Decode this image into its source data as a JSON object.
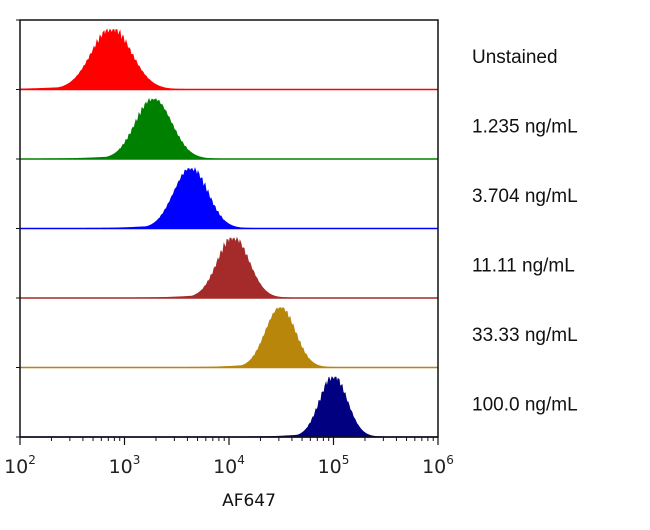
{
  "chart_data": {
    "type": "area",
    "subtype": "stacked-histogram-overlay",
    "xlabel": "AF647",
    "xscale": "log",
    "xlim": [
      100,
      1000000
    ],
    "x_ticks": [
      {
        "value": 100,
        "base": "10",
        "exp": "2"
      },
      {
        "value": 1000,
        "base": "10",
        "exp": "3"
      },
      {
        "value": 10000,
        "base": "10",
        "exp": "4"
      },
      {
        "value": 100000,
        "base": "10",
        "exp": "5"
      },
      {
        "value": 1000000,
        "base": "10",
        "exp": "6"
      }
    ],
    "series": [
      {
        "name": "Unstained",
        "color": "#ff0000",
        "peak": 750,
        "width": 0.19
      },
      {
        "name": "1.235 ng/mL",
        "color": "#008000",
        "peak": 1900,
        "width": 0.17
      },
      {
        "name": "3.704 ng/mL",
        "color": "#0000ff",
        "peak": 4300,
        "width": 0.16
      },
      {
        "name": "11.11 ng/mL",
        "color": "#a52a2a",
        "peak": 11000,
        "width": 0.15
      },
      {
        "name": "33.33 ng/mL",
        "color": "#b8860b",
        "peak": 31000,
        "width": 0.14
      },
      {
        "name": "100.0 ng/mL",
        "color": "#000080",
        "peak": 100000,
        "width": 0.13
      }
    ]
  }
}
